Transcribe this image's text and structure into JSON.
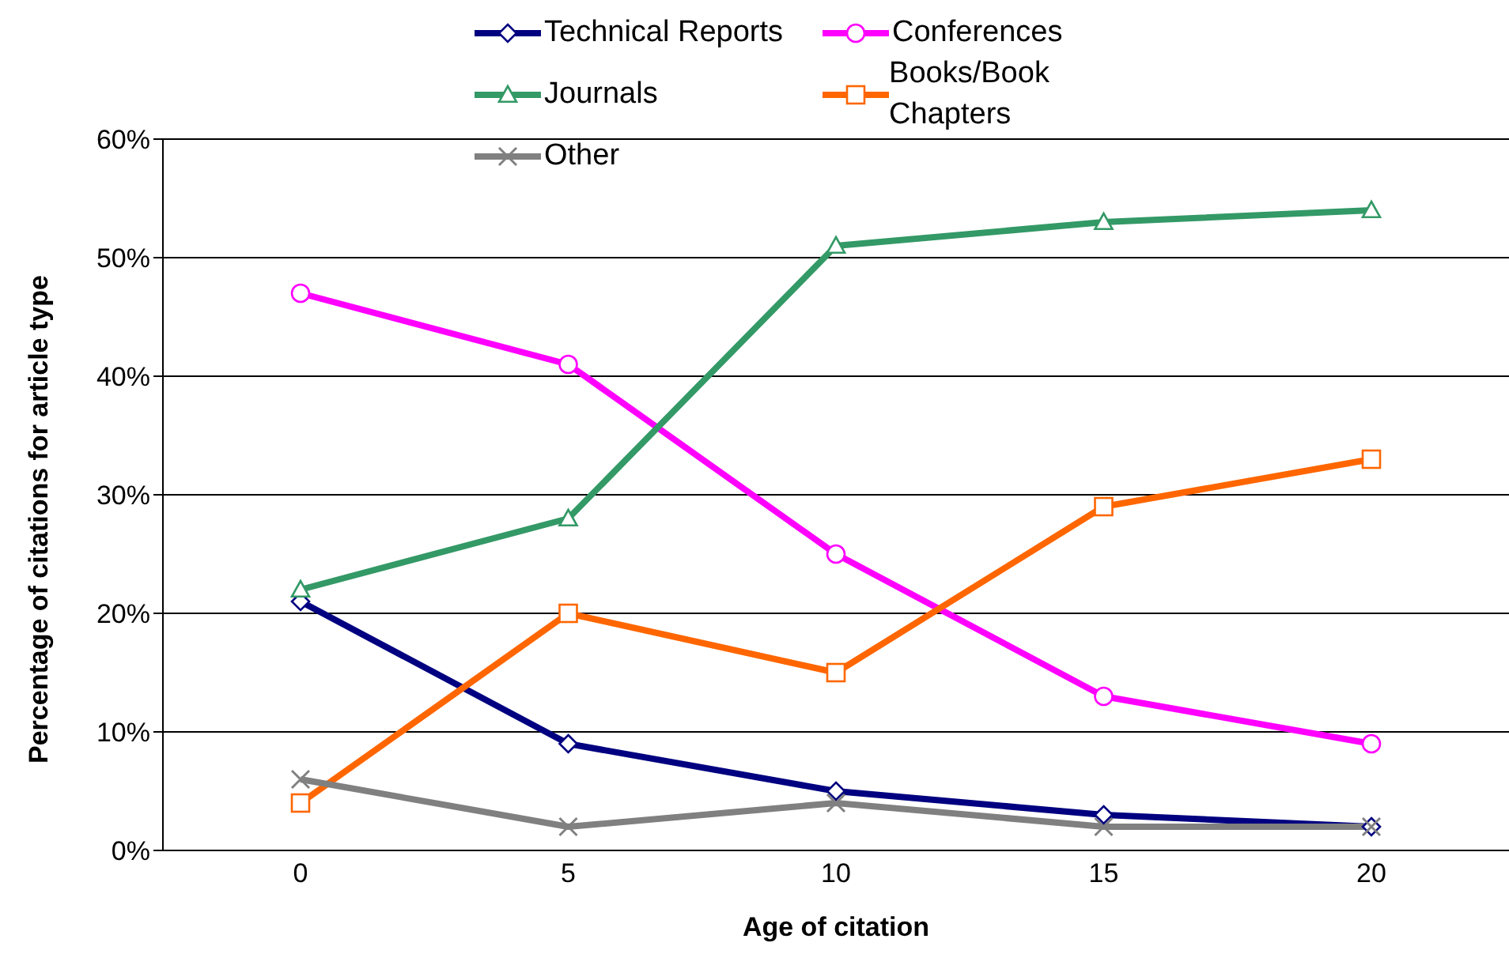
{
  "chart_data": {
    "type": "line",
    "xlabel": "Age of citation",
    "ylabel": "Percentage of citations for article type",
    "categories": [
      "0",
      "5",
      "10",
      "15",
      "20"
    ],
    "series": [
      {
        "name": "Technical Reports",
        "color": "#000080",
        "marker": "diamond",
        "values": [
          21,
          9,
          5,
          3,
          2
        ]
      },
      {
        "name": "Conferences",
        "color": "#ff00ff",
        "marker": "circle",
        "values": [
          47,
          41,
          25,
          13,
          9
        ]
      },
      {
        "name": "Journals",
        "color": "#339966",
        "marker": "triangle",
        "values": [
          22,
          28,
          51,
          53,
          54
        ]
      },
      {
        "name": "Books/Book Chapters",
        "color": "#ff6600",
        "marker": "square",
        "values": [
          4,
          20,
          15,
          29,
          33
        ]
      },
      {
        "name": "Other",
        "color": "#808080",
        "marker": "cross",
        "values": [
          6,
          2,
          4,
          2,
          2
        ]
      }
    ],
    "ylim": [
      0,
      60
    ],
    "yticks": [
      {
        "value": 0,
        "label": "0%"
      },
      {
        "value": 10,
        "label": "10%"
      },
      {
        "value": 20,
        "label": "20%"
      },
      {
        "value": 30,
        "label": "30%"
      },
      {
        "value": 40,
        "label": "40%"
      },
      {
        "value": 50,
        "label": "50%"
      },
      {
        "value": 60,
        "label": "60%"
      }
    ],
    "grid": "y",
    "legend": "top",
    "line_style": "solid"
  }
}
